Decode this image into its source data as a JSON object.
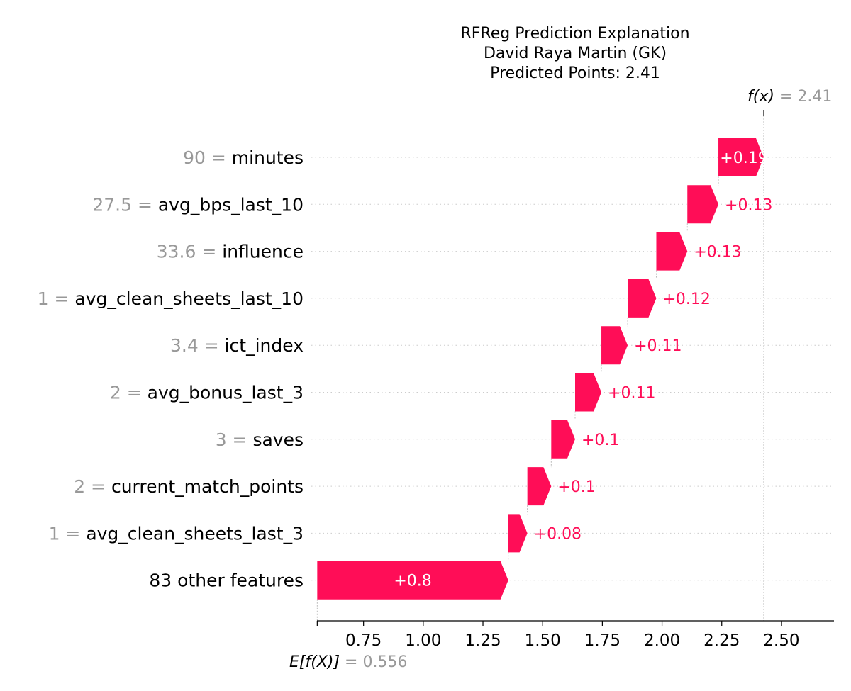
{
  "chart_data": {
    "type": "waterfall",
    "title_lines": [
      "RFReg Prediction Explanation",
      "David Raya Martin (GK)",
      "Predicted Points: 2.41"
    ],
    "base_value": 0.556,
    "base_value_label": "0.556",
    "prediction_label": "2.41",
    "fx_symbol": "f(x)",
    "ex_symbol": "E[f(X)]",
    "equals": "=",
    "features": [
      {
        "value": "90",
        "name": "minutes",
        "shap": 0.19,
        "label": "+0.19"
      },
      {
        "value": "27.5",
        "name": "avg_bps_last_10",
        "shap": 0.13,
        "label": "+0.13"
      },
      {
        "value": "33.6",
        "name": "influence",
        "shap": 0.13,
        "label": "+0.13"
      },
      {
        "value": "1",
        "name": "avg_clean_sheets_last_10",
        "shap": 0.12,
        "label": "+0.12"
      },
      {
        "value": "3.4",
        "name": "ict_index",
        "shap": 0.11,
        "label": "+0.11"
      },
      {
        "value": "2",
        "name": "avg_bonus_last_3",
        "shap": 0.11,
        "label": "+0.11"
      },
      {
        "value": "3",
        "name": "saves",
        "shap": 0.1,
        "label": "+0.1"
      },
      {
        "value": "2",
        "name": "current_match_points",
        "shap": 0.1,
        "label": "+0.1"
      },
      {
        "value": "1",
        "name": "avg_clean_sheets_last_3",
        "shap": 0.08,
        "label": "+0.08"
      },
      {
        "value": "",
        "name": "83 other features",
        "shap": 0.8,
        "label": "+0.8"
      }
    ],
    "x_ticks": [
      0.75,
      1.0,
      1.25,
      1.5,
      1.75,
      2.0,
      2.25,
      2.5
    ],
    "x_tick_labels": [
      "0.75",
      "1.00",
      "1.25",
      "1.50",
      "1.75",
      "2.00",
      "2.25",
      "2.50"
    ],
    "xlim": [
      0.555,
      2.72
    ],
    "colors": {
      "positive": "#ff0d57",
      "value_text": "#999999",
      "grid": "#cccccc"
    }
  }
}
